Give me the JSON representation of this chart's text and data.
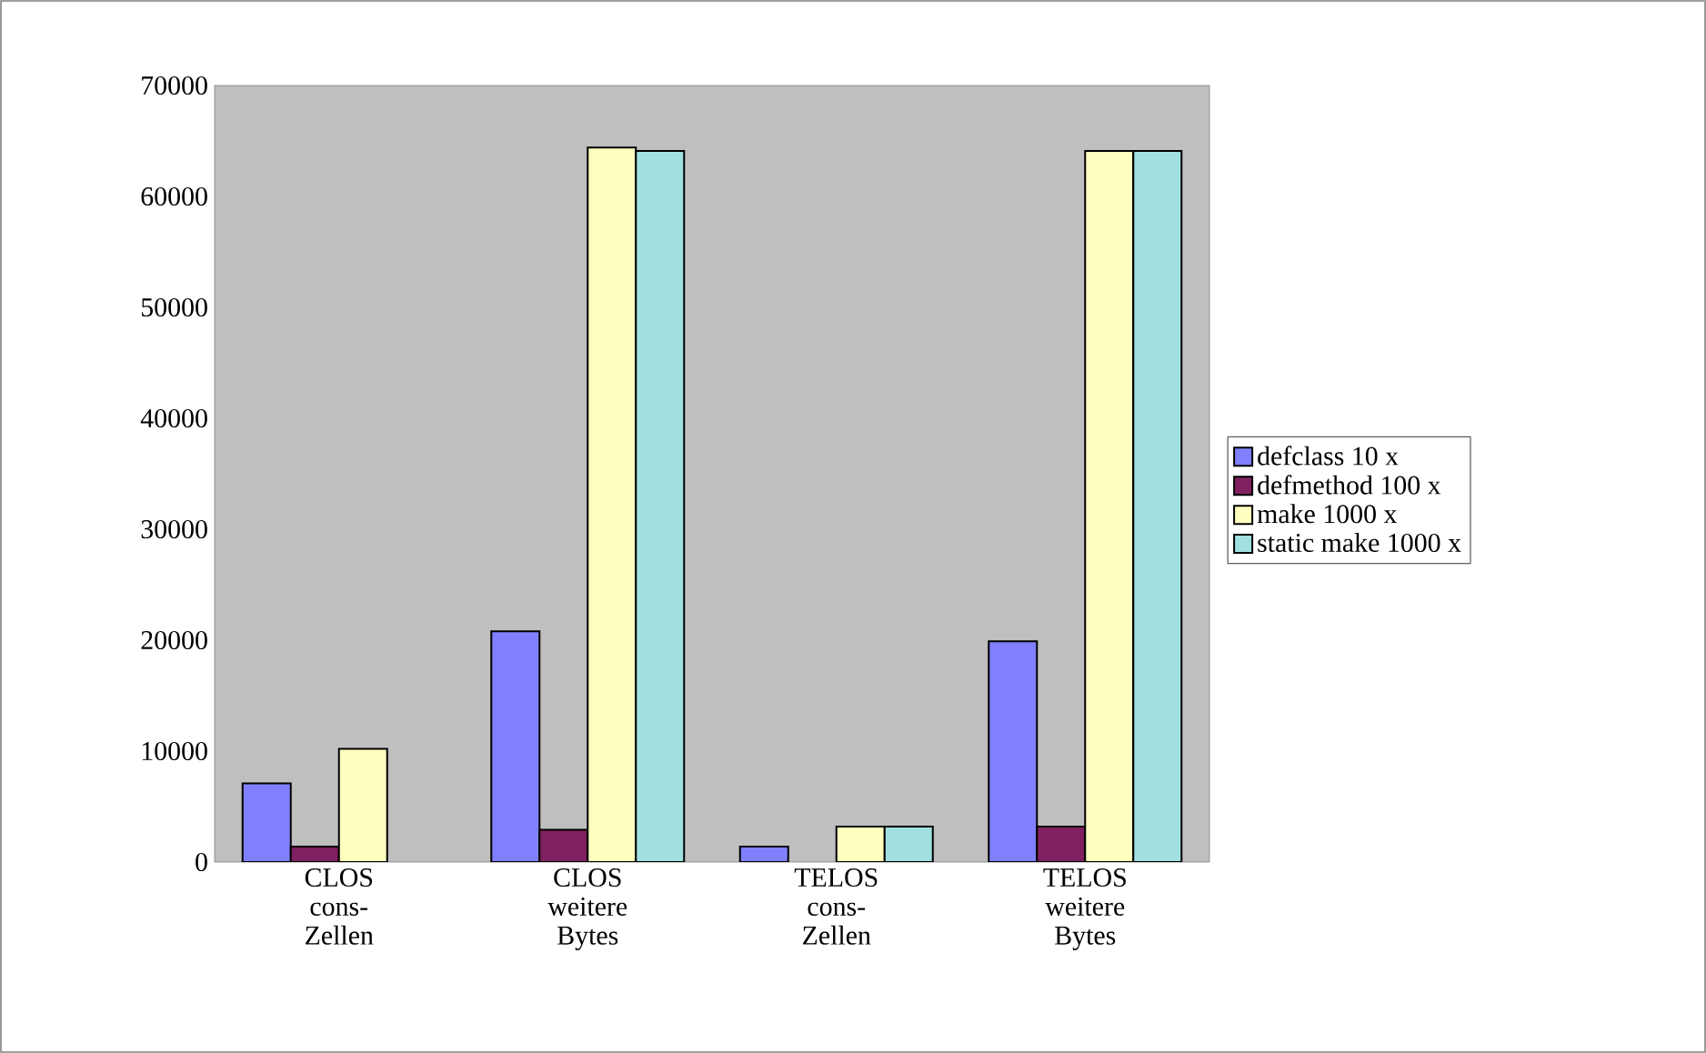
{
  "chart_data": {
    "type": "bar",
    "categories": [
      "CLOS cons- Zellen",
      "CLOS weitere Bytes",
      "TELOS cons- Zellen",
      "TELOS weitere Bytes"
    ],
    "series": [
      {
        "name": "defclass 10 x",
        "color": "#8080ff",
        "values": [
          7100,
          20800,
          1400,
          19900
        ]
      },
      {
        "name": "defmethod 100 x",
        "color": "#802060",
        "values": [
          1400,
          2900,
          null,
          3200
        ]
      },
      {
        "name": "make 1000 x",
        "color": "#ffffc0",
        "values": [
          10200,
          64400,
          3200,
          64100
        ]
      },
      {
        "name": "static make 1000 x",
        "color": "#a0e0e0",
        "values": [
          null,
          64100,
          3200,
          64100
        ]
      }
    ],
    "ylim": [
      0,
      70000
    ],
    "yticks": [
      0,
      10000,
      20000,
      30000,
      40000,
      50000,
      60000,
      70000
    ],
    "grid": false,
    "legend": "right"
  }
}
